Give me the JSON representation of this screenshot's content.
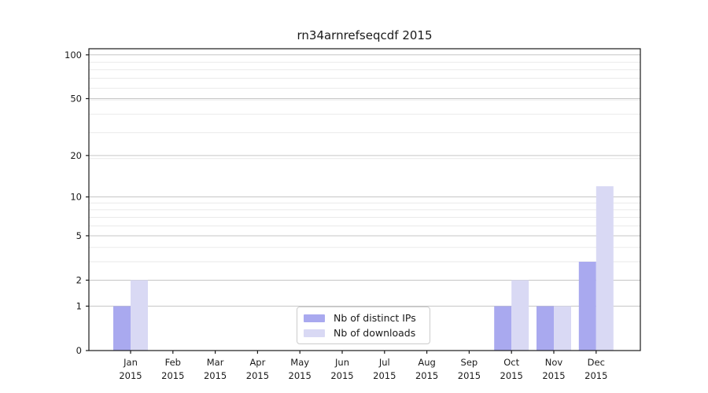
{
  "colors": {
    "background": "#ffffff",
    "axis": "#1a1a1a",
    "tick_label": "#1a1a1a",
    "major_grid": "#c6c6c6",
    "minor_grid": "#eaeaea",
    "legend_border": "#cccccc",
    "series_ips": "#a9a9ef",
    "series_downloads": "#d9d9f4"
  },
  "chart_data": {
    "type": "bar",
    "title": "rn34arnrefseqcdf 2015",
    "categories": [
      "Jan 2015",
      "Feb 2015",
      "Mar 2015",
      "Apr 2015",
      "May 2015",
      "Jun 2015",
      "Jul 2015",
      "Aug 2015",
      "Sep 2015",
      "Oct 2015",
      "Nov 2015",
      "Dec 2015"
    ],
    "series": [
      {
        "name": "Nb of distinct IPs",
        "color": "#a9a9ef",
        "values": [
          1,
          0,
          0,
          0,
          0,
          0,
          0,
          0,
          0,
          1,
          1,
          3
        ]
      },
      {
        "name": "Nb of downloads",
        "color": "#d9d9f4",
        "values": [
          2,
          0,
          0,
          0,
          0,
          0,
          0,
          0,
          0,
          2,
          1,
          12
        ]
      }
    ],
    "xlabel": "",
    "ylabel": "",
    "y_axis": {
      "scale": "log10(1+value)",
      "ticks": [
        0,
        1,
        2,
        5,
        10,
        20,
        50,
        100
      ],
      "minor_gridlines": [
        3,
        4,
        6,
        7,
        8,
        9,
        19,
        29,
        39,
        49,
        59,
        69,
        79,
        89
      ],
      "range": [
        0,
        110
      ]
    },
    "grid": true,
    "legend_position": "lower center"
  }
}
